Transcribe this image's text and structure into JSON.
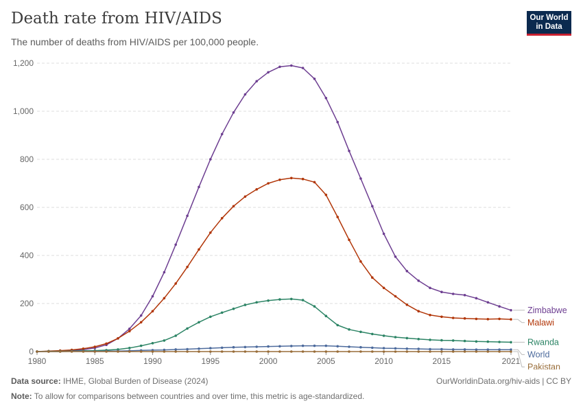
{
  "header": {
    "title": "Death rate from HIV/AIDS",
    "subtitle": "The number of deaths from HIV/AIDS per 100,000 people.",
    "logo_line1": "Our World",
    "logo_line2": "in Data"
  },
  "footer": {
    "source_label": "Data source:",
    "source_text": "IHME, Global Burden of Disease (2024)",
    "note_label": "Note:",
    "note_text": "To allow for comparisons between countries and over time, this metric is age-standardized.",
    "link_text": "OurWorldinData.org/hiv-aids",
    "license": "CC BY"
  },
  "chart_data": {
    "type": "line",
    "title": "Death rate from HIV/AIDS",
    "subtitle": "The number of deaths from HIV/AIDS per 100,000 people.",
    "xlabel": "",
    "ylabel": "",
    "xlim": [
      1980,
      2021
    ],
    "ylim": [
      0,
      1200
    ],
    "x_ticks": [
      1980,
      1985,
      1990,
      1995,
      2000,
      2005,
      2010,
      2015,
      2021
    ],
    "y_ticks": [
      0,
      200,
      400,
      600,
      800,
      1000,
      1200
    ],
    "y_tick_labels": [
      "0",
      "200",
      "400",
      "600",
      "800",
      "1,000",
      "1,200"
    ],
    "grid": "horizontal dashed",
    "legend": "right, labels at line ends",
    "x": [
      1980,
      1981,
      1982,
      1983,
      1984,
      1985,
      1986,
      1987,
      1988,
      1989,
      1990,
      1991,
      1992,
      1993,
      1994,
      1995,
      1996,
      1997,
      1998,
      1999,
      2000,
      2001,
      2002,
      2003,
      2004,
      2005,
      2006,
      2007,
      2008,
      2009,
      2010,
      2011,
      2012,
      2013,
      2014,
      2015,
      2016,
      2017,
      2018,
      2019,
      2020,
      2021
    ],
    "series": [
      {
        "name": "Zimbabwe",
        "color": "#6d3e91",
        "values": [
          0,
          1,
          2,
          4,
          8,
          15,
          28,
          55,
          95,
          150,
          230,
          330,
          445,
          565,
          685,
          800,
          905,
          995,
          1070,
          1125,
          1162,
          1185,
          1190,
          1180,
          1135,
          1055,
          955,
          835,
          720,
          605,
          490,
          395,
          335,
          295,
          265,
          248,
          240,
          235,
          222,
          205,
          188,
          172
        ]
      },
      {
        "name": "Malawi",
        "color": "#b13507",
        "values": [
          0,
          2,
          4,
          7,
          12,
          20,
          33,
          55,
          85,
          122,
          168,
          222,
          283,
          352,
          425,
          495,
          555,
          605,
          645,
          675,
          700,
          715,
          722,
          718,
          705,
          652,
          560,
          465,
          375,
          308,
          265,
          230,
          195,
          168,
          152,
          145,
          140,
          138,
          136,
          135,
          136,
          134
        ]
      },
      {
        "name": "Rwanda",
        "color": "#2c8465",
        "values": [
          0,
          1,
          1,
          2,
          3,
          4,
          6,
          9,
          15,
          24,
          35,
          46,
          66,
          96,
          122,
          145,
          162,
          178,
          194,
          205,
          212,
          217,
          219,
          214,
          188,
          148,
          110,
          92,
          82,
          73,
          66,
          60,
          56,
          52,
          49,
          47,
          46,
          44,
          42,
          41,
          40,
          39
        ]
      },
      {
        "name": "World",
        "color": "#4c6a9c",
        "values": [
          0,
          0,
          0,
          1,
          1,
          1,
          2,
          2,
          3,
          5,
          6,
          7,
          9,
          10,
          12,
          14,
          16,
          18,
          19,
          20,
          21,
          22,
          23,
          24,
          24,
          24,
          22,
          20,
          18,
          16,
          14,
          13,
          12,
          11,
          10,
          10,
          9,
          9,
          8,
          8,
          8,
          8
        ]
      },
      {
        "name": "Pakistan",
        "color": "#996d39",
        "values": [
          0,
          0,
          0,
          0,
          0,
          0,
          0,
          0,
          0,
          0,
          0,
          0,
          0,
          0,
          0,
          0,
          0,
          0,
          0,
          0,
          0,
          0,
          0,
          0,
          0,
          0,
          0,
          0,
          0,
          0,
          0,
          0,
          0,
          0,
          0,
          0,
          0,
          0,
          0,
          0,
          0,
          0
        ]
      }
    ]
  }
}
